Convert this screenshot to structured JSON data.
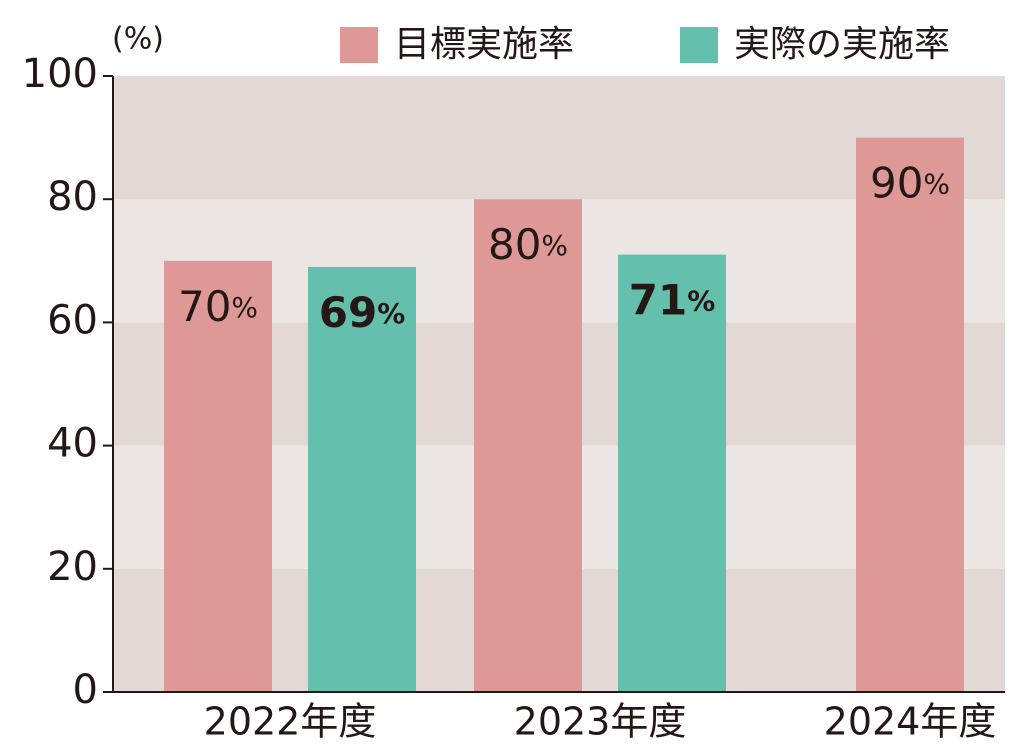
{
  "chart_data": {
    "type": "bar",
    "y_label": "(%)",
    "categories": [
      "2022年度",
      "2023年度",
      "2024年度"
    ],
    "series": [
      {
        "name": "目標実施率",
        "color": "#de9896",
        "values": [
          70,
          80,
          90
        ],
        "value_labels": [
          "70%",
          "80%",
          "90%"
        ]
      },
      {
        "name": "実際の実施率",
        "color": "#64bfac",
        "values": [
          69,
          71,
          null
        ],
        "value_labels": [
          "69%",
          "71%",
          null
        ]
      }
    ],
    "ylim": [
      0,
      100
    ],
    "yticks": [
      0,
      20,
      40,
      60,
      80,
      100
    ],
    "band_colors": [
      "#e2d9d7",
      "#ebe6e4"
    ]
  }
}
